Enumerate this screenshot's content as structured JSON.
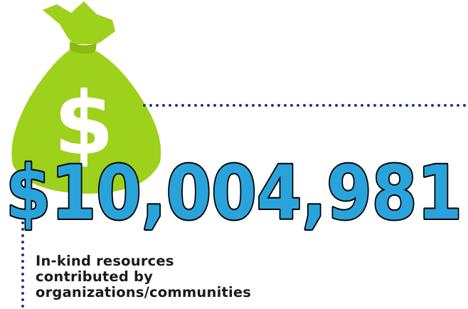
{
  "colors": {
    "bag": "#9ed11b",
    "bag_shade": "#8bbb12",
    "symbol": "#ffffff",
    "amount_fill": "#2aa3da",
    "amount_outline": "#000000",
    "dots": "#1d3a7a",
    "caption": "#1a1a1a"
  },
  "icon": "money-bag-icon",
  "bag_symbol": "$",
  "amount": "$10,004,981",
  "caption": {
    "line1": "In-kind resources",
    "line2": "contributed by",
    "line3": "organizations/communities"
  }
}
